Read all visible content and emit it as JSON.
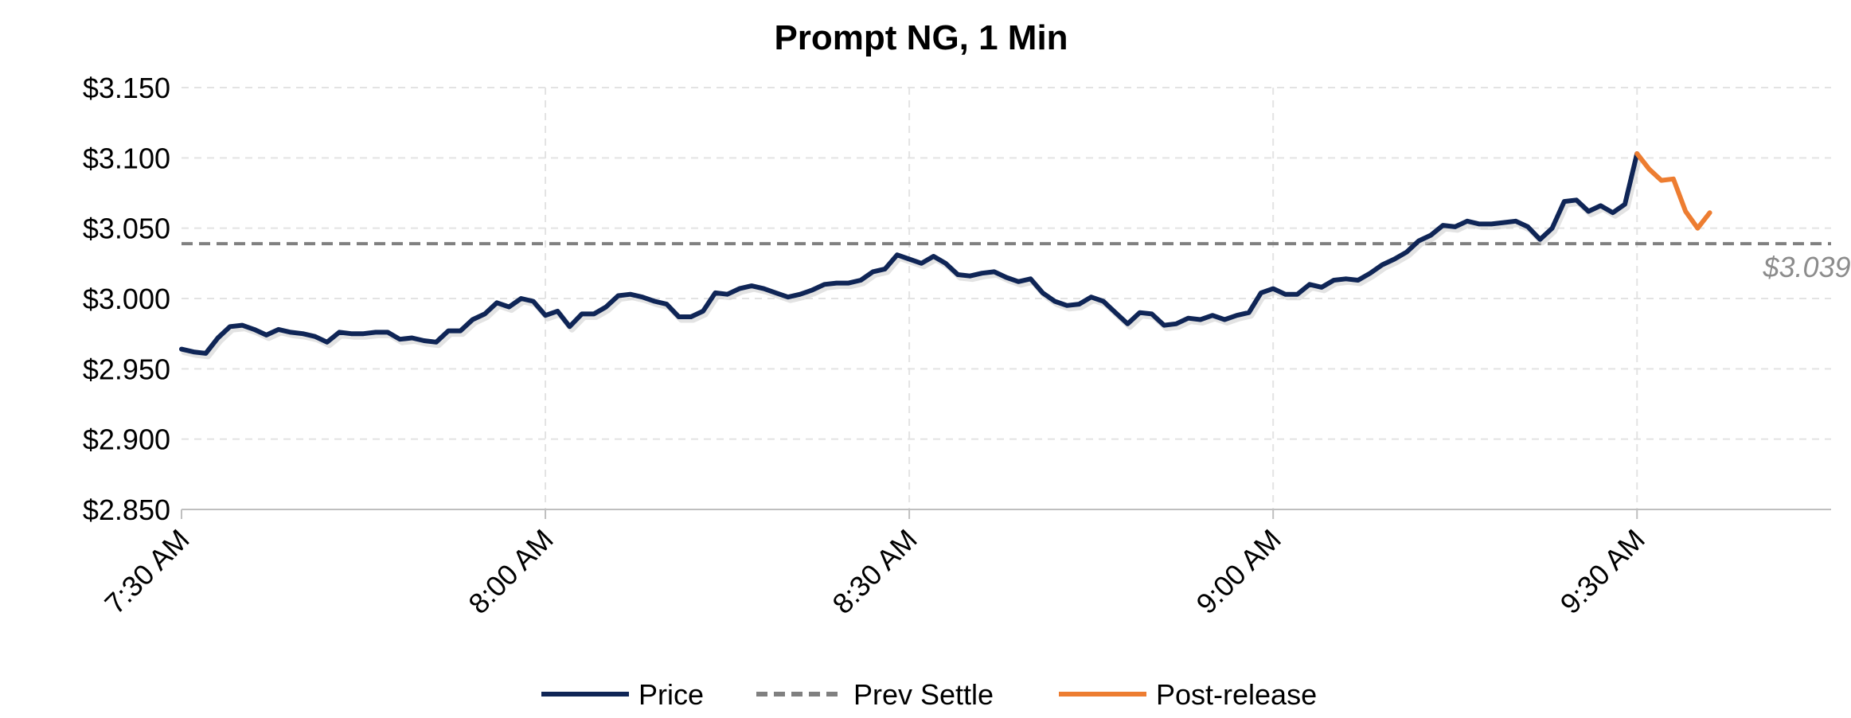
{
  "chart_data": {
    "type": "line",
    "title": "Prompt NG, 1 Min",
    "xlabel": "",
    "ylabel": "",
    "ylim": [
      2.85,
      3.15
    ],
    "yticks": [
      2.85,
      2.9,
      2.95,
      3.0,
      3.05,
      3.1,
      3.15
    ],
    "ytick_labels": [
      "$2.850",
      "$2.900",
      "$2.950",
      "$3.000",
      "$3.050",
      "$3.100",
      "$3.150"
    ],
    "x_unit": "minutes",
    "xlim": [
      0,
      136
    ],
    "xticks": [
      0,
      30,
      60,
      90,
      120
    ],
    "xtick_labels": [
      "7:30 AM",
      "8:00 AM",
      "8:30 AM",
      "9:00 AM",
      "9:30 AM"
    ],
    "grid": true,
    "legend_position": "bottom",
    "colors": {
      "price": "#0f2556",
      "prev_settle": "#808080",
      "post_release": "#ed7d31"
    },
    "series": [
      {
        "name": "Price",
        "x": [
          0,
          1,
          2,
          3,
          4,
          5,
          6,
          7,
          8,
          9,
          10,
          11,
          12,
          13,
          14,
          15,
          16,
          17,
          18,
          19,
          20,
          21,
          22,
          23,
          24,
          25,
          26,
          27,
          28,
          29,
          30,
          31,
          32,
          33,
          34,
          35,
          36,
          37,
          38,
          39,
          40,
          41,
          42,
          43,
          44,
          45,
          46,
          47,
          48,
          49,
          50,
          51,
          52,
          53,
          54,
          55,
          56,
          57,
          58,
          59,
          60,
          61,
          62,
          63,
          64,
          65,
          66,
          67,
          68,
          69,
          70,
          71,
          72,
          73,
          74,
          75,
          76,
          77,
          78,
          79,
          80,
          81,
          82,
          83,
          84,
          85,
          86,
          87,
          88,
          89,
          90,
          91,
          92,
          93,
          94,
          95,
          96,
          97,
          98,
          99,
          100,
          101,
          102,
          103,
          104,
          105,
          106,
          107,
          108,
          109,
          110,
          111,
          112,
          113,
          114,
          115,
          116,
          117,
          118,
          119,
          120
        ],
        "values": [
          2.964,
          2.962,
          2.961,
          2.972,
          2.98,
          2.981,
          2.978,
          2.974,
          2.978,
          2.976,
          2.975,
          2.973,
          2.969,
          2.976,
          2.975,
          2.975,
          2.976,
          2.976,
          2.971,
          2.972,
          2.97,
          2.969,
          2.977,
          2.977,
          2.985,
          2.989,
          2.997,
          2.994,
          3.0,
          2.998,
          2.988,
          2.991,
          2.98,
          2.989,
          2.989,
          2.994,
          3.002,
          3.003,
          3.001,
          2.998,
          2.996,
          2.987,
          2.987,
          2.991,
          3.004,
          3.003,
          3.007,
          3.009,
          3.007,
          3.004,
          3.001,
          3.003,
          3.006,
          3.01,
          3.011,
          3.011,
          3.013,
          3.019,
          3.021,
          3.031,
          3.028,
          3.025,
          3.03,
          3.025,
          3.017,
          3.016,
          3.018,
          3.019,
          3.015,
          3.012,
          3.014,
          3.004,
          2.998,
          2.995,
          2.996,
          3.001,
          2.998,
          2.99,
          2.982,
          2.99,
          2.989,
          2.981,
          2.982,
          2.986,
          2.985,
          2.988,
          2.985,
          2.988,
          2.99,
          3.004,
          3.007,
          3.003,
          3.003,
          3.01,
          3.008,
          3.013,
          3.014,
          3.013,
          3.018,
          3.024,
          3.028,
          3.033,
          3.041,
          3.045,
          3.052,
          3.051,
          3.055,
          3.053,
          3.053,
          3.054,
          3.055,
          3.051,
          3.042,
          3.05,
          3.069,
          3.07,
          3.062,
          3.066,
          3.061,
          3.067,
          3.103
        ]
      },
      {
        "name": "Prev Settle",
        "constant": 3.039
      },
      {
        "name": "Post-release",
        "x": [
          120,
          121,
          122,
          123,
          124,
          125,
          126
        ],
        "values": [
          3.103,
          3.092,
          3.084,
          3.085,
          3.062,
          3.05,
          3.061
        ]
      }
    ],
    "annotations": [
      {
        "text": "$3.039",
        "x": 134,
        "y": 3.022
      }
    ]
  }
}
